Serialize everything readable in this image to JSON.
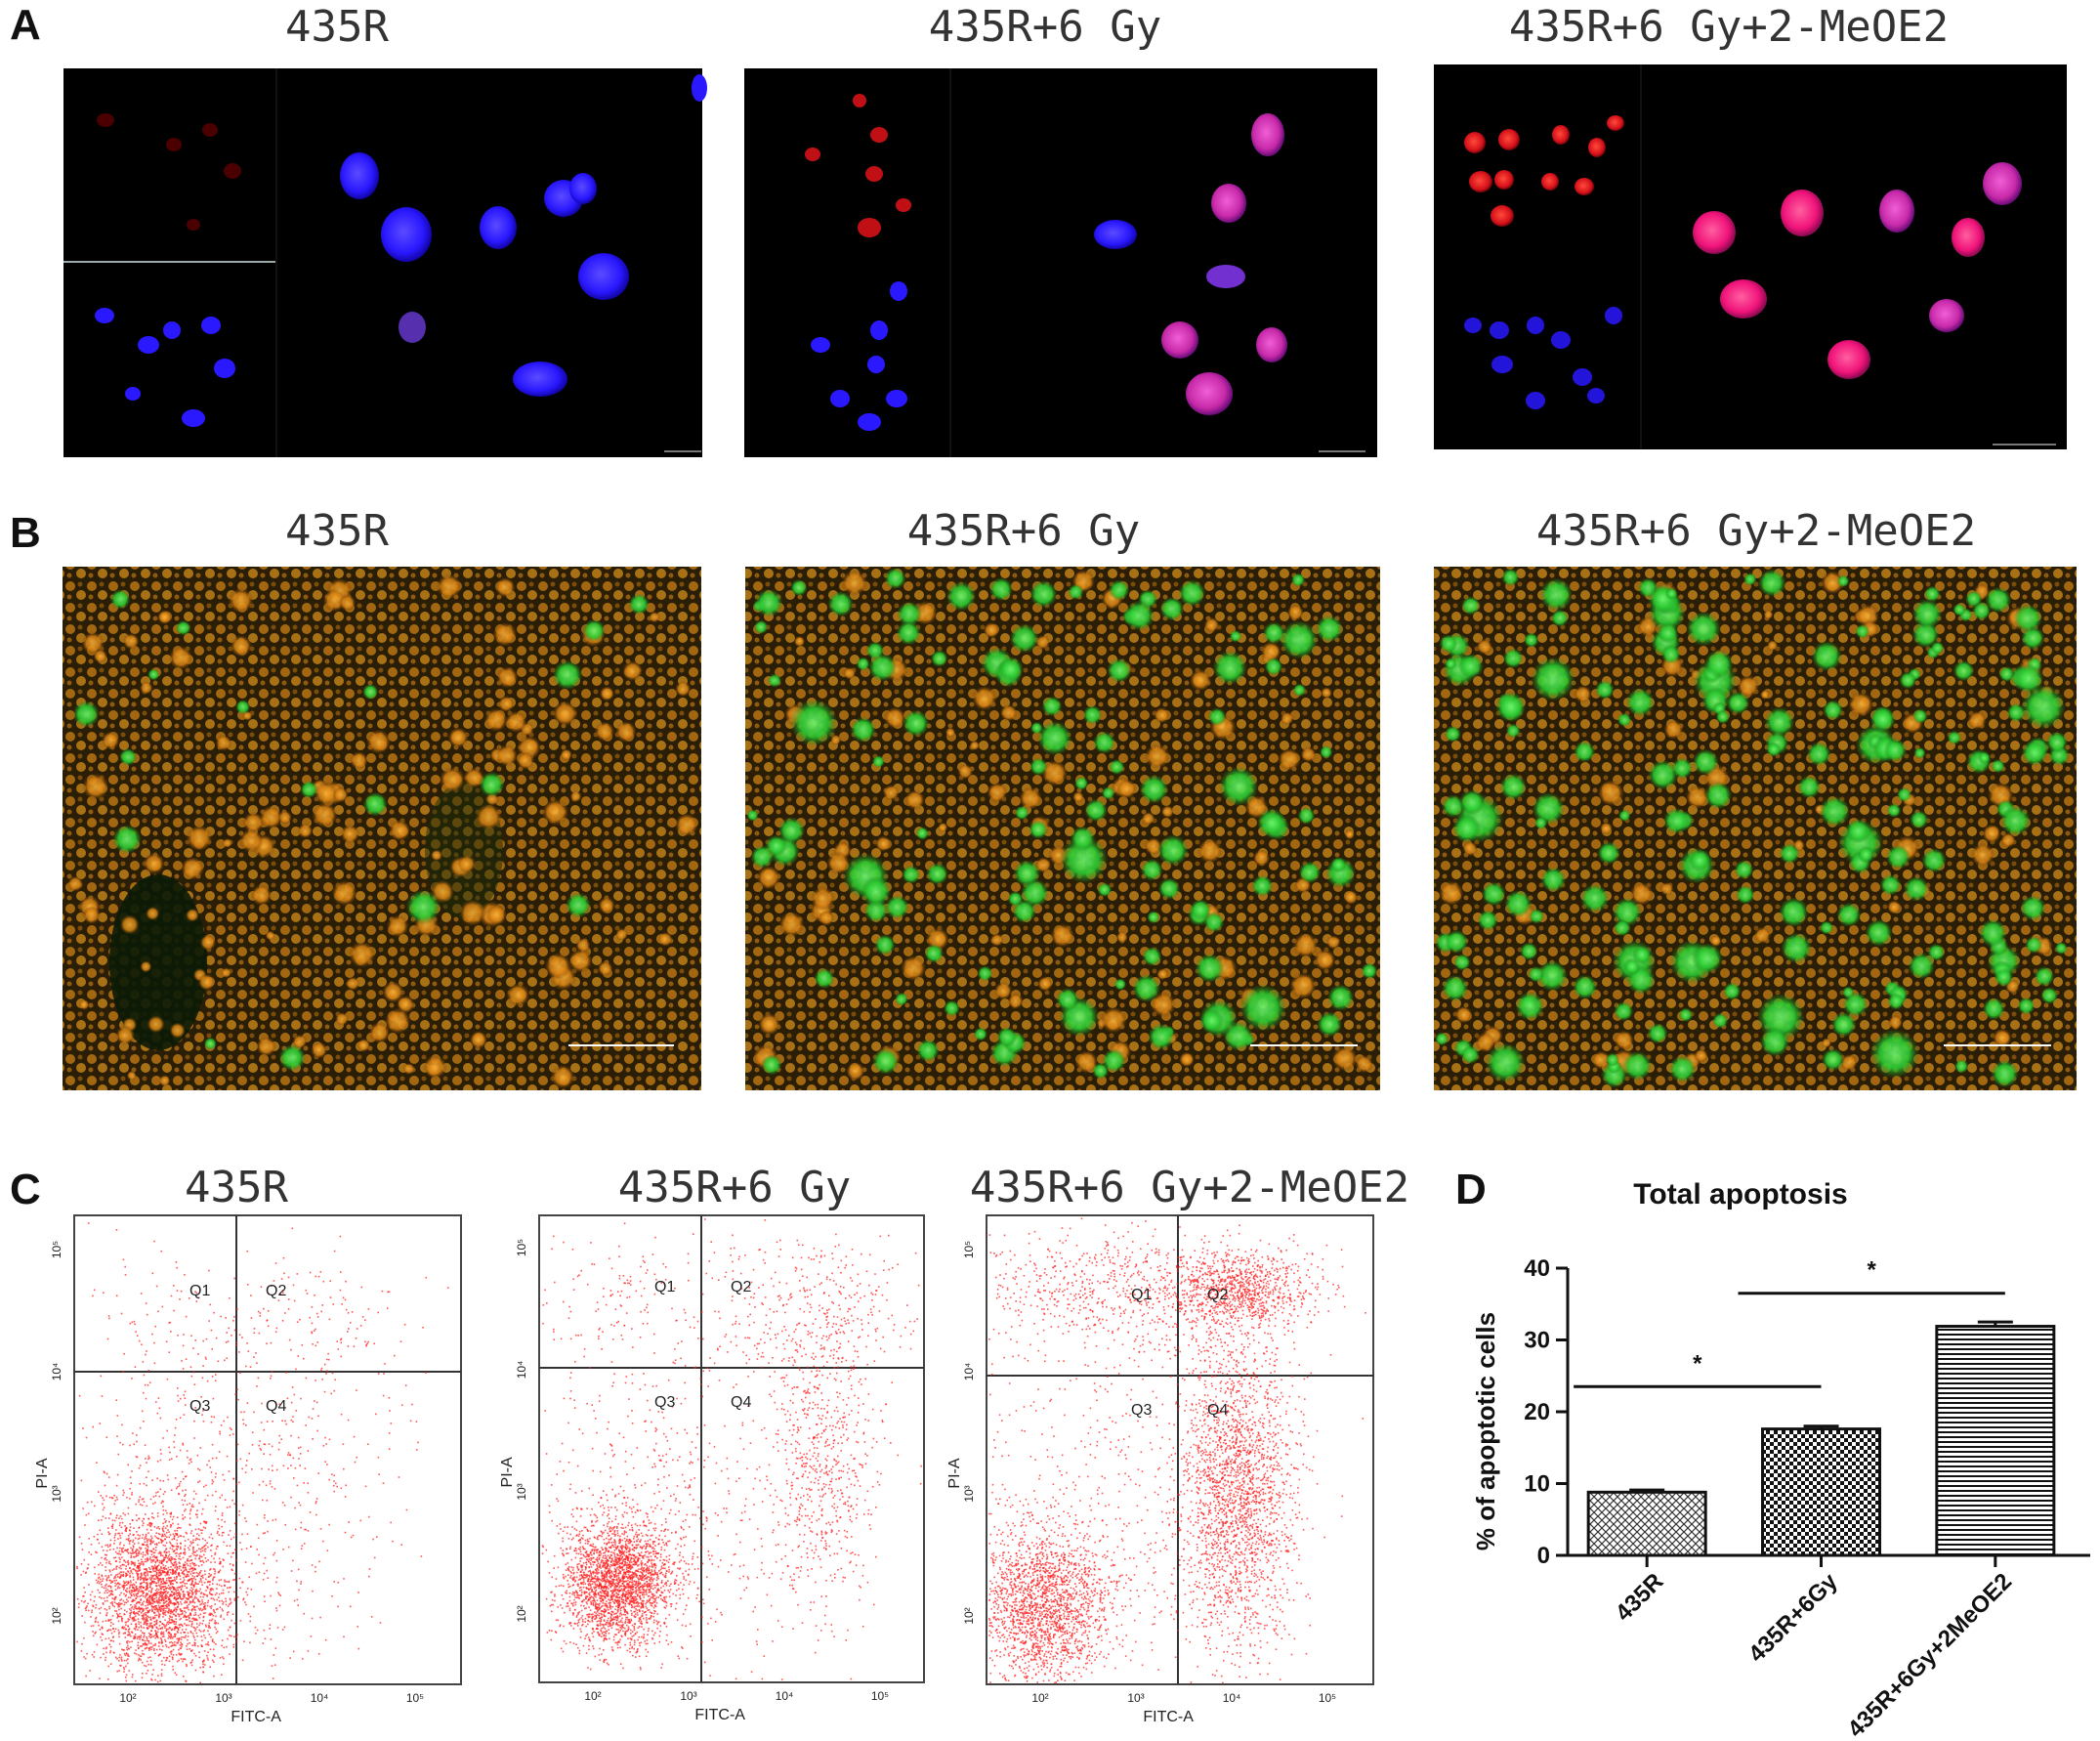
{
  "panels": {
    "A": {
      "label": "A",
      "titles": [
        "435R",
        "435R+6 Gy",
        "435R+6 Gy+2-MeOE2"
      ]
    },
    "B": {
      "label": "B",
      "titles": [
        "435R",
        "435R+6 Gy",
        "435R+6 Gy+2-MeOE2"
      ]
    },
    "C": {
      "label": "C",
      "titles": [
        "435R",
        "435R+6 Gy",
        "435R+6 Gy+2-MeOE2"
      ],
      "quadrants": [
        "Q1",
        "Q2",
        "Q3",
        "Q4"
      ],
      "xlabel": "FITC-A",
      "ylabel": "PI-A",
      "ticks": [
        "10²",
        "10³",
        "10⁴",
        "10⁵"
      ]
    },
    "D": {
      "label": "D"
    }
  },
  "chart_data": [
    {
      "type": "bar",
      "title": "Total apoptosis",
      "ylabel": "% of apoptotic cells",
      "xlabel": "",
      "categories": [
        "435R",
        "435R+6Gy",
        "435R+6Gy+2MeOE2"
      ],
      "values": [
        8.8,
        17.6,
        31.9
      ],
      "errors": [
        0.3,
        0.4,
        0.6
      ],
      "ylim": [
        0,
        40
      ],
      "yticks": [
        0,
        10,
        20,
        30,
        40
      ],
      "significance": [
        {
          "pair": [
            0,
            1
          ],
          "label": "*"
        },
        {
          "pair": [
            1,
            2
          ],
          "label": "*"
        }
      ],
      "patterns": [
        "diamond-grid",
        "checker",
        "horizontal-stripes"
      ]
    }
  ],
  "colors": {
    "nucleus_blue": "#2d1dff",
    "pi_red": "#e0101a",
    "merge_magenta": "#d81ca8",
    "jc1_green": "#2fd12f",
    "jc1_orange": "#c87a10",
    "flow_dot": "#ff2020"
  }
}
